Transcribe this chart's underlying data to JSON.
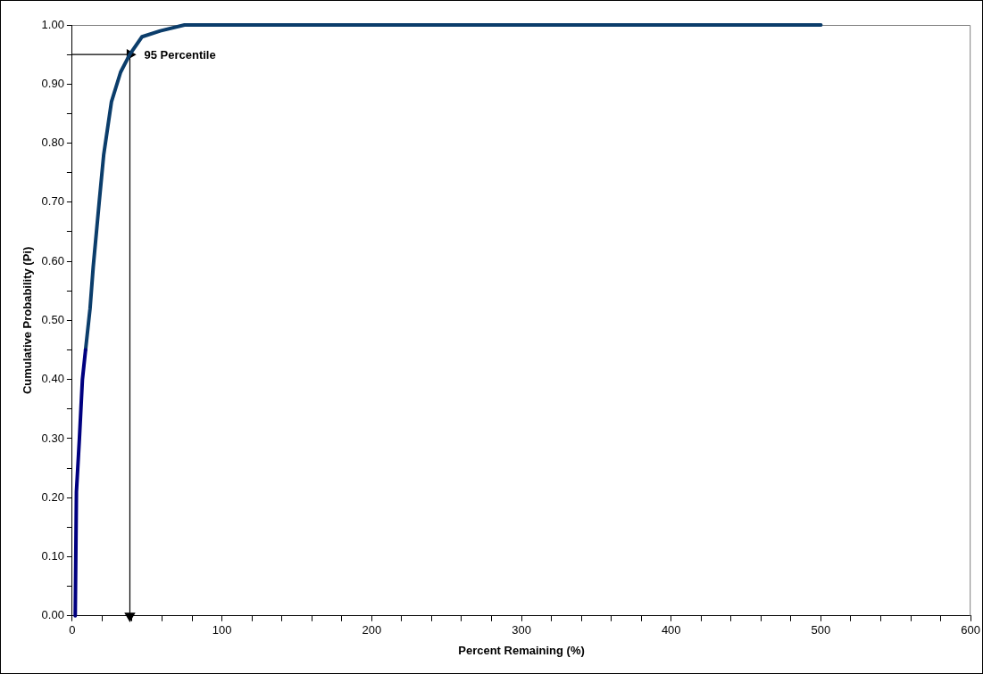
{
  "chart_data": {
    "type": "line",
    "xlabel": "Percent Remaining (%)",
    "ylabel": "Cumulative Probability (Pi)",
    "series": [
      {
        "color": "#000080",
        "x": [
          2,
          2.8,
          4.8,
          6.8,
          8.9
        ],
        "values": [
          0,
          0.21,
          0.3,
          0.4,
          0.45
        ]
      },
      {
        "color": "#0b3d6b",
        "x": [
          8.9,
          11.9,
          14,
          18,
          21,
          26.2,
          32.3,
          38.4,
          46.6,
          58.8,
          75,
          100,
          200,
          300,
          400,
          500
        ],
        "values": [
          0.45,
          0.52,
          0.59,
          0.7,
          0.78,
          0.87,
          0.92,
          0.95,
          0.98,
          0.99,
          1,
          1,
          1,
          1,
          1,
          1
        ]
      },
      {
        "color": "#000000",
        "x": [
          0,
          38.5
        ],
        "values": [
          0.95,
          0.95
        ],
        "marker": "triangle"
      },
      {
        "color": "#000000",
        "x": [
          38.5,
          38.5
        ],
        "values": [
          0.95,
          0
        ],
        "marker": "triangle"
      }
    ],
    "xlim": [
      0,
      600
    ],
    "xticks": [
      0,
      {
        "value": 20,
        "label": null
      },
      {
        "value": 40,
        "label": null
      },
      {
        "value": 60,
        "label": null
      },
      {
        "value": 80,
        "label": null
      },
      100,
      {
        "value": 120,
        "label": null
      },
      {
        "value": 140,
        "label": null
      },
      {
        "value": 160,
        "label": null
      },
      {
        "value": 180,
        "label": null
      },
      200,
      {
        "value": 220,
        "label": null
      },
      {
        "value": 240,
        "label": null
      },
      {
        "value": 260,
        "label": null
      },
      {
        "value": 280,
        "label": null
      },
      300,
      {
        "value": 320,
        "label": null
      },
      {
        "value": 340,
        "label": null
      },
      {
        "value": 360,
        "label": null
      },
      {
        "value": 380,
        "label": null
      },
      400,
      {
        "value": 420,
        "label": null
      },
      {
        "value": 440,
        "label": null
      },
      {
        "value": 460,
        "label": null
      },
      {
        "value": 480,
        "label": null
      },
      500,
      {
        "value": 520,
        "label": null
      },
      {
        "value": 540,
        "label": null
      },
      {
        "value": 560,
        "label": null
      },
      {
        "value": 580,
        "label": null
      },
      600
    ],
    "ylim": [
      0,
      1
    ],
    "yticks": [
      {
        "value": 0,
        "label": "0.00"
      },
      {
        "value": 0.05,
        "label": null
      },
      {
        "value": 0.1,
        "label": "0.10"
      },
      {
        "value": 0.15,
        "label": null
      },
      {
        "value": 0.2,
        "label": "0.20"
      },
      {
        "value": 0.25,
        "label": null
      },
      {
        "value": 0.3,
        "label": "0.30"
      },
      {
        "value": 0.35,
        "label": null
      },
      {
        "value": 0.4,
        "label": "0.40"
      },
      {
        "value": 0.45,
        "label": null
      },
      {
        "value": 0.5,
        "label": "0.50"
      },
      {
        "value": 0.55,
        "label": null
      },
      {
        "value": 0.6,
        "label": "0.60"
      },
      {
        "value": 0.65,
        "label": null
      },
      {
        "value": 0.7,
        "label": "0.70"
      },
      {
        "value": 0.75,
        "label": null
      },
      {
        "value": 0.8,
        "label": "0.80"
      },
      {
        "value": 0.85,
        "label": null
      },
      {
        "value": 0.9,
        "label": "0.90"
      },
      {
        "value": 0.95,
        "label": null
      },
      {
        "value": 1,
        "label": "1.00"
      }
    ],
    "annotations": [
      {
        "text": "95 Percentile",
        "x": 38.5,
        "y": 0.95
      }
    ],
    "grid": false,
    "legend": false,
    "marker": "none",
    "line_style": "solid"
  }
}
